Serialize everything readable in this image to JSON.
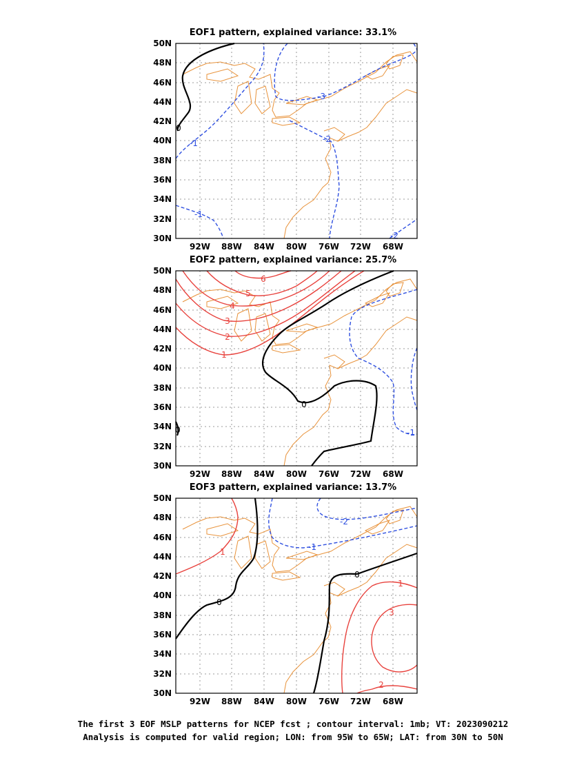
{
  "panels": [
    {
      "title": "EOF1 pattern, explained variance: 33.1%",
      "lon_ticks": [
        "92W",
        "88W",
        "84W",
        "80W",
        "76W",
        "72W",
        "68W"
      ],
      "lat_ticks": [
        "50N",
        "48N",
        "46N",
        "44N",
        "42N",
        "40N",
        "38N",
        "36N",
        "34N",
        "32N",
        "30N"
      ],
      "contour_labels": [
        "0",
        "-1",
        "-1",
        "-3",
        "-2",
        "-2"
      ]
    },
    {
      "title": "EOF2 pattern, explained variance: 25.7%",
      "lon_ticks": [
        "92W",
        "88W",
        "84W",
        "80W",
        "76W",
        "72W",
        "68W"
      ],
      "lat_ticks": [
        "50N",
        "48N",
        "46N",
        "44N",
        "42N",
        "40N",
        "38N",
        "36N",
        "34N",
        "32N",
        "30N"
      ],
      "contour_labels": [
        "6",
        "5",
        "4",
        "3",
        "2",
        "1",
        "0",
        "0",
        "-1"
      ]
    },
    {
      "title": "EOF3 pattern, explained variance: 13.7%",
      "lon_ticks": [
        "92W",
        "88W",
        "84W",
        "80W",
        "76W",
        "72W",
        "68W"
      ],
      "lat_ticks": [
        "50N",
        "48N",
        "46N",
        "44N",
        "42N",
        "40N",
        "38N",
        "36N",
        "34N",
        "32N",
        "30N"
      ],
      "contour_labels": [
        "1",
        "0",
        "0",
        "-1",
        "-2",
        "1",
        "3",
        "2"
      ]
    }
  ],
  "caption": {
    "line1": "The first 3 EOF MSLP patterns for NCEP fcst ; contour interval: 1mb; VT: 2023090212",
    "line2": "Analysis is computed for valid region; LON: from 95W to 65W; LAT: from 30N to 50N"
  },
  "colors": {
    "positive": "#e8413c",
    "negative": "#2e4fe0",
    "zero": "#000000",
    "coast": "#e8923a",
    "grid": "#9a9a9a"
  }
}
